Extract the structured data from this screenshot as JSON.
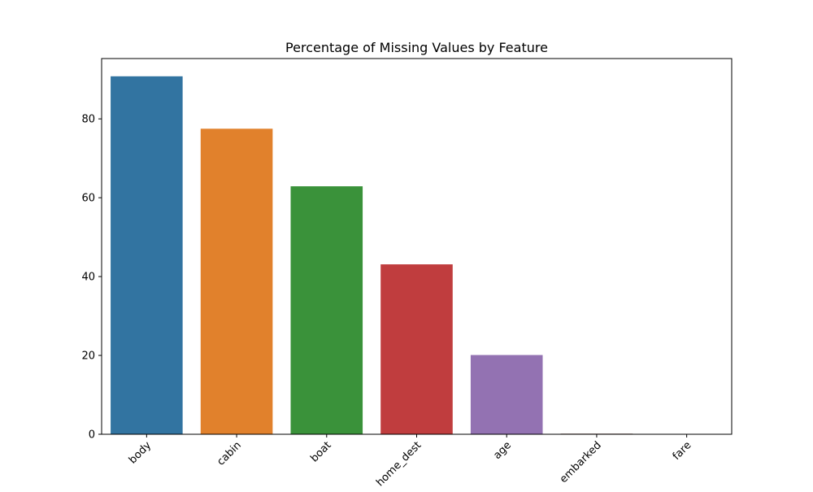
{
  "chart_data": {
    "type": "bar",
    "title": "Percentage of Missing Values by Feature",
    "xlabel": "",
    "ylabel": "",
    "categories": [
      "body",
      "cabin",
      "boat",
      "home_dest",
      "age",
      "embarked",
      "fare"
    ],
    "values": [
      90.8,
      77.5,
      62.9,
      43.1,
      20.1,
      0.15,
      0.08
    ],
    "colors": [
      "#3274a1",
      "#e1812c",
      "#3a923a",
      "#c03d3e",
      "#9372b2",
      "#845b53",
      "#d684bd"
    ],
    "ylim": [
      0,
      95.3
    ],
    "yticks": [
      0,
      20,
      40,
      60,
      80
    ],
    "grid": false,
    "legend": "none",
    "xtick_rotation": 45
  }
}
